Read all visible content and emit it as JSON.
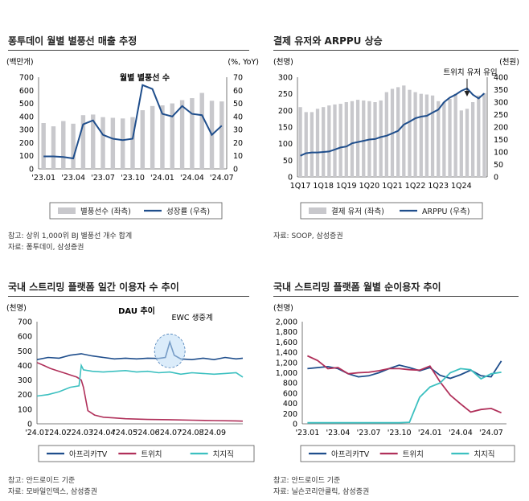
{
  "panels": {
    "p1": {
      "title": "퐁투데이 월별 별풍선 매출 추정",
      "note1": "참고: 상위 1,000위 BJ 별풍선 개수 합계",
      "note2": "자료: 퐁투데이, 삼성증권"
    },
    "p2": {
      "title": "결제 유저와 ARPPU 상승",
      "note1": "자료: SOOP, 삼성증권"
    },
    "p3": {
      "title": "국내 스트리밍 플랫폼 일간 이용자 수 추이",
      "note1": "참고: 안드로이드 기준",
      "note2": "자료: 모바일인덱스, 삼성증권"
    },
    "p4": {
      "title": "국내 스트리밍 플랫폼 월별 순이용자 추이",
      "note1": "참고: 안드로이드 기준",
      "note2": "자료: 닐슨코리안클릭, 삼성증권"
    }
  },
  "colors": {
    "bar": "#c8c8cc",
    "navy": "#1f4e8c",
    "crimson": "#b0305a",
    "teal": "#3cc0c0"
  },
  "chart_data": [
    {
      "type": "bar+line",
      "title": "월별 별풍선 수",
      "ylabel_left": "(백만개)",
      "ylabel_right": "(%, YoY)",
      "ylim_left": [
        0,
        700
      ],
      "ylim_right": [
        0,
        70
      ],
      "yticks_left": [
        "0",
        "100",
        "200",
        "300",
        "400",
        "500",
        "600",
        "700"
      ],
      "yticks_right": [
        "0",
        "10",
        "20",
        "30",
        "40",
        "50",
        "60",
        "70"
      ],
      "xticks": [
        "'23.01",
        "'23.04",
        "'23.07",
        "'23.10",
        "'24.01",
        "'24.04",
        "'24.07"
      ],
      "series": [
        {
          "name": "별풍선수 (좌측)",
          "kind": "bar",
          "values": [
            350,
            325,
            365,
            345,
            410,
            415,
            395,
            390,
            385,
            395,
            448,
            480,
            485,
            500,
            525,
            540,
            580,
            520,
            515
          ]
        },
        {
          "name": "성장률 (우측)",
          "kind": "line",
          "values": [
            9.5,
            9.5,
            9,
            8,
            34,
            37,
            26,
            23,
            22,
            23,
            64,
            61,
            42,
            40,
            48,
            42,
            41,
            26,
            33
          ]
        }
      ]
    },
    {
      "type": "bar+line",
      "ylabel_left": "(천명)",
      "ylabel_right": "(천원)",
      "ylim_left": [
        0,
        300
      ],
      "ylim_right": [
        0,
        400
      ],
      "yticks_left": [
        "0",
        "50",
        "100",
        "150",
        "200",
        "250",
        "300"
      ],
      "yticks_right": [
        "0",
        "50",
        "100",
        "150",
        "200",
        "250",
        "300",
        "350",
        "400"
      ],
      "xticks": [
        "1Q17",
        "1Q18",
        "1Q19",
        "1Q20",
        "1Q21",
        "1Q22",
        "1Q23",
        "1Q24"
      ],
      "annotation": "트위치 유저 유입",
      "series": [
        {
          "name": "결제 유저 (좌측)",
          "kind": "bar",
          "values": [
            210,
            195,
            195,
            205,
            210,
            215,
            218,
            220,
            225,
            228,
            232,
            230,
            228,
            225,
            230,
            255,
            265,
            270,
            275,
            262,
            255,
            250,
            248,
            245,
            228,
            225,
            235,
            250,
            200,
            205,
            225,
            245,
            252
          ]
        },
        {
          "name": "ARPPU (우측)",
          "kind": "line",
          "values": [
            85,
            95,
            98,
            98,
            100,
            102,
            110,
            118,
            122,
            135,
            140,
            145,
            150,
            152,
            160,
            165,
            175,
            185,
            210,
            222,
            235,
            242,
            245,
            258,
            270,
            300,
            318,
            330,
            345,
            355,
            330,
            315,
            335
          ]
        }
      ]
    },
    {
      "type": "line",
      "title": "DAU 추이",
      "ylabel": "(천명)",
      "ylim": [
        0,
        700
      ],
      "yticks": [
        "0",
        "100",
        "200",
        "300",
        "400",
        "500",
        "600",
        "700"
      ],
      "xticks": [
        "'24.01",
        "'24.02",
        "'24.03",
        "'24.04",
        "'24.05",
        "'24.06",
        "'24.07",
        "'24.08",
        "'24.09"
      ],
      "annotation": "EWC 생중계",
      "series": [
        {
          "name": "아프리카TV",
          "x": [
            0,
            0.5,
            1,
            1.5,
            2,
            2.5,
            3,
            3.5,
            4,
            4.5,
            5,
            5.5,
            5.8,
            6.0,
            6.2,
            6.5,
            7,
            7.5,
            8,
            8.5,
            9,
            9.3
          ],
          "y": [
            440,
            455,
            450,
            470,
            480,
            465,
            455,
            445,
            450,
            445,
            450,
            448,
            455,
            560,
            470,
            445,
            440,
            450,
            440,
            455,
            445,
            450
          ]
        },
        {
          "name": "트위치",
          "x": [
            0,
            0.3,
            0.6,
            1,
            1.3,
            1.6,
            1.8,
            2.0,
            2.1,
            2.3,
            2.6,
            3,
            3.5,
            4,
            5,
            6,
            7,
            8,
            9,
            9.3
          ],
          "y": [
            420,
            400,
            380,
            360,
            345,
            330,
            320,
            300,
            250,
            90,
            60,
            45,
            40,
            35,
            30,
            28,
            25,
            22,
            20,
            18
          ]
        },
        {
          "name": "치지직",
          "x": [
            0,
            0.5,
            1,
            1.5,
            1.9,
            2.0,
            2.1,
            2.5,
            3,
            3.5,
            4,
            4.5,
            5,
            5.5,
            6,
            6.5,
            7,
            7.5,
            8,
            8.5,
            9,
            9.3
          ],
          "y": [
            190,
            200,
            220,
            250,
            260,
            400,
            370,
            360,
            355,
            360,
            365,
            355,
            360,
            350,
            355,
            340,
            350,
            345,
            340,
            345,
            350,
            320
          ]
        }
      ]
    },
    {
      "type": "line",
      "ylabel": "(천명)",
      "ylim": [
        0,
        2000
      ],
      "yticks": [
        "0",
        "200",
        "400",
        "600",
        "800",
        "1,000",
        "1,200",
        "1,400",
        "1,600",
        "1,800",
        "2,000"
      ],
      "xticks": [
        "'23.01",
        "'23.04",
        "'23.07",
        "'23.10",
        "'24.01",
        "'24.04",
        "'24.07"
      ],
      "series": [
        {
          "name": "아프리카TV",
          "values": [
            1080,
            1100,
            1120,
            1080,
            980,
            920,
            940,
            1000,
            1080,
            1150,
            1100,
            1040,
            1100,
            950,
            890,
            960,
            1050,
            940,
            920,
            1230
          ]
        },
        {
          "name": "트위치",
          "values": [
            1330,
            1240,
            1080,
            1100,
            980,
            1000,
            1010,
            1040,
            1080,
            1080,
            1060,
            1050,
            1130,
            820,
            560,
            390,
            230,
            280,
            300,
            215
          ]
        },
        {
          "name": "치지직",
          "values": [
            20,
            20,
            20,
            20,
            20,
            20,
            20,
            20,
            20,
            20,
            30,
            520,
            720,
            800,
            1000,
            1080,
            1060,
            880,
            980,
            1010
          ]
        }
      ]
    }
  ]
}
